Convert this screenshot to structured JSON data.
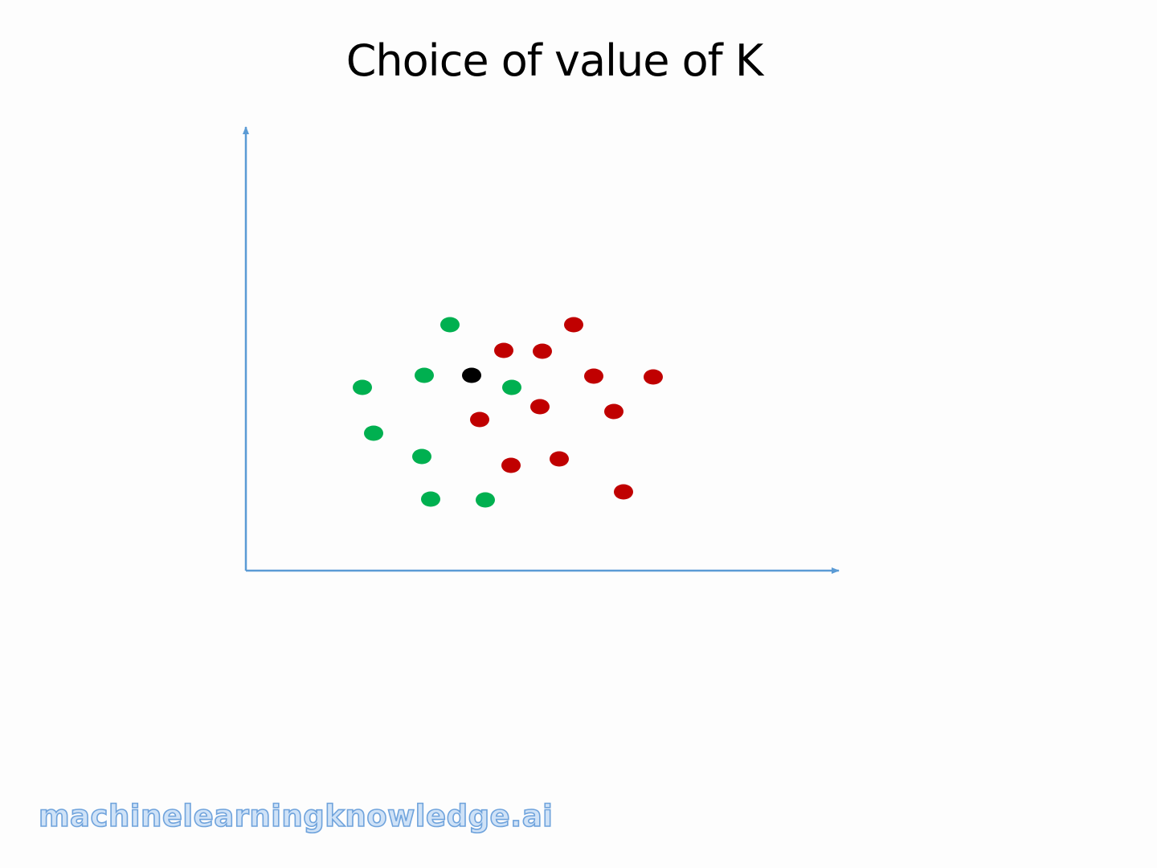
{
  "title": "Choice of value of K",
  "watermark": "machinelearningknowledge.ai",
  "colors": {
    "axis": "#5b9bd5",
    "green_class": "#00b050",
    "red_class": "#c00000",
    "query_point": "#000000"
  },
  "chart_data": {
    "type": "scatter",
    "title": "Choice of value of K",
    "xlabel": "",
    "ylabel": "",
    "grid": false,
    "series": [
      {
        "color": "#00b050",
        "points": [
          {
            "x": 254,
            "y": 306
          },
          {
            "x": 222,
            "y": 243
          },
          {
            "x": 145,
            "y": 228
          },
          {
            "x": 331,
            "y": 228
          },
          {
            "x": 159,
            "y": 171
          },
          {
            "x": 219,
            "y": 142
          },
          {
            "x": 230,
            "y": 89
          },
          {
            "x": 298,
            "y": 88
          }
        ]
      },
      {
        "color": "#c00000",
        "points": [
          {
            "x": 408,
            "y": 306
          },
          {
            "x": 321,
            "y": 274
          },
          {
            "x": 369,
            "y": 273
          },
          {
            "x": 433,
            "y": 242
          },
          {
            "x": 507,
            "y": 241
          },
          {
            "x": 366,
            "y": 204
          },
          {
            "x": 291,
            "y": 188
          },
          {
            "x": 458,
            "y": 198
          },
          {
            "x": 390,
            "y": 139
          },
          {
            "x": 330,
            "y": 131
          },
          {
            "x": 470,
            "y": 98
          }
        ]
      },
      {
        "color": "#000000",
        "points": [
          {
            "x": 281,
            "y": 243
          }
        ]
      }
    ]
  }
}
